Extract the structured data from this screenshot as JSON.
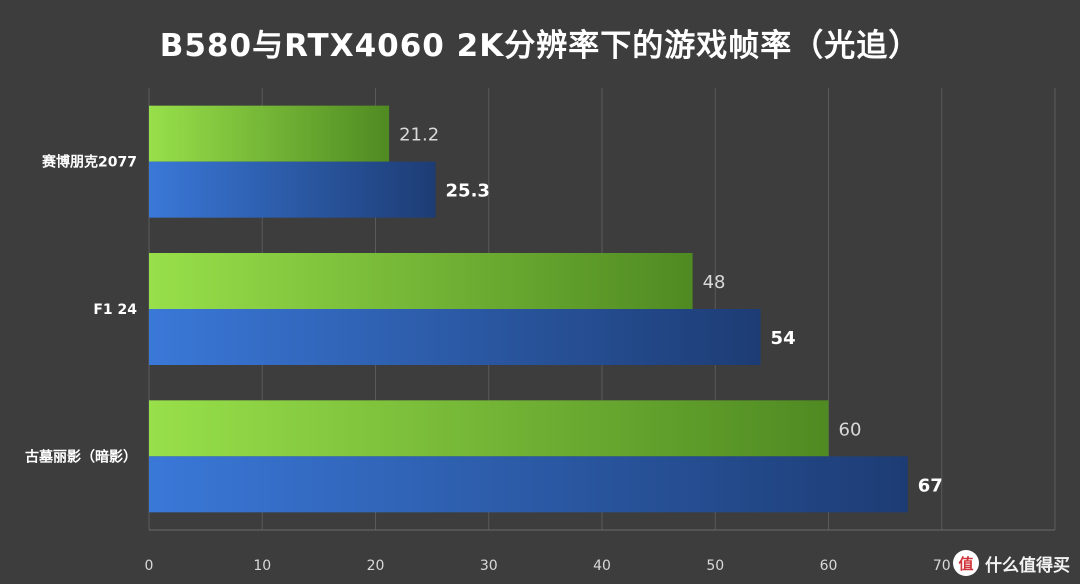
{
  "chart_data": {
    "type": "bar",
    "orientation": "horizontal",
    "title": "B580与RTX4060 2K分辨率下的游戏帧率（光追）",
    "categories": [
      "赛博朋克2077",
      "F1 24",
      "古墓丽影（暗影）"
    ],
    "series": [
      {
        "values": [
          21.2,
          48,
          60
        ],
        "color": "#8fcf3c"
      },
      {
        "values": [
          25.3,
          54,
          67
        ],
        "color": "#2e5fb8"
      }
    ],
    "xlim": [
      0,
      80
    ],
    "xticks": [
      "0",
      "10",
      "20",
      "30",
      "40",
      "50",
      "60",
      "70"
    ],
    "grid": true,
    "legend": "none"
  },
  "watermark": {
    "logo": "值",
    "text": "什么值得买"
  }
}
